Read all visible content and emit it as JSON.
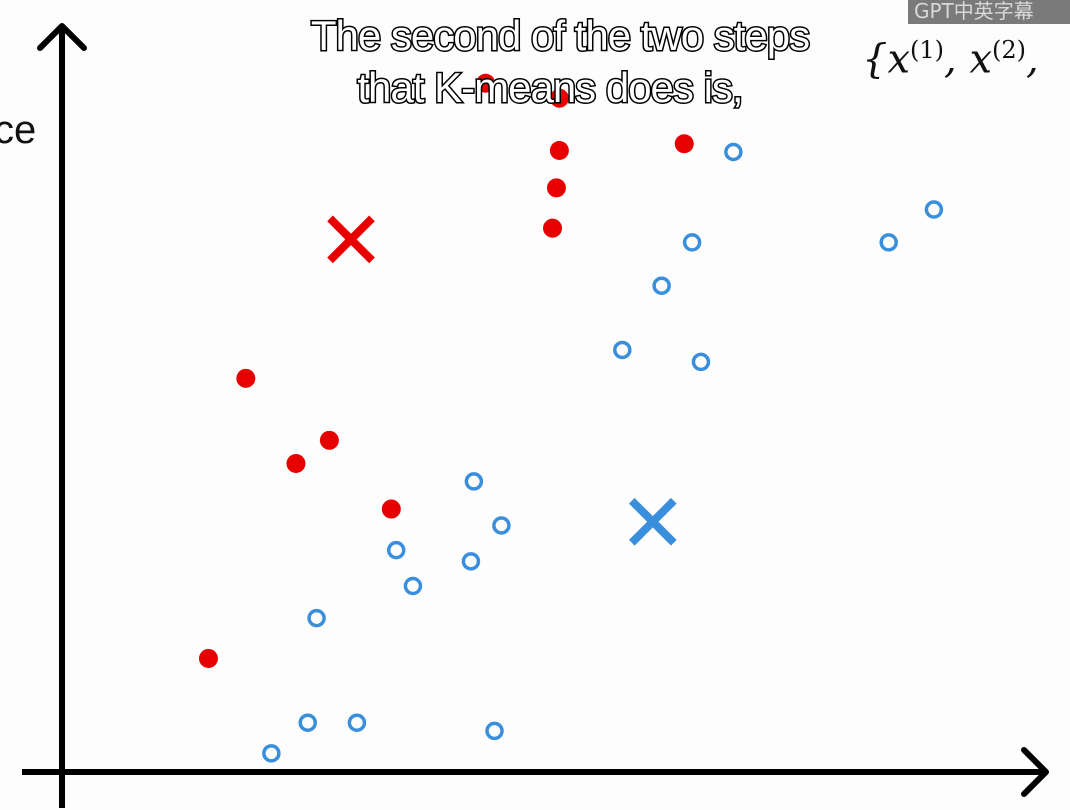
{
  "caption": {
    "line1": "The second of the two steps",
    "line2": "that K-means does is,"
  },
  "math_notation": "{x(1), x(2),",
  "watermark": "GPT中英字幕",
  "edge_label": "ce",
  "colors": {
    "cluster_red": "#e60000",
    "cluster_blue": "#3a8fdc",
    "axis": "#000000"
  },
  "chart_data": {
    "type": "scatter",
    "title": "",
    "xlabel": "",
    "ylabel": "",
    "xlim": [
      0,
      10
    ],
    "ylim": [
      0,
      10
    ],
    "grid": false,
    "series": [
      {
        "color": "#e60000",
        "marker": "filled-circle",
        "x": [
          4.31,
          5.06,
          5.06,
          5.03,
          4.99,
          6.33,
          1.87,
          2.72,
          2.38,
          3.35,
          1.49
        ],
        "y": [
          9.22,
          9.02,
          8.32,
          7.82,
          7.28,
          8.41,
          5.27,
          4.44,
          4.13,
          3.52,
          1.52
        ]
      },
      {
        "color": "#3a8fdc",
        "marker": "open-circle",
        "x": [
          6.83,
          8.87,
          8.41,
          6.41,
          6.1,
          5.7,
          6.5,
          4.19,
          4.47,
          3.4,
          4.16,
          3.57,
          2.59,
          2.5,
          3.0,
          4.4,
          2.13
        ],
        "y": [
          8.3,
          7.53,
          7.09,
          7.09,
          6.51,
          5.65,
          5.49,
          3.89,
          3.3,
          2.97,
          2.82,
          2.49,
          2.06,
          0.66,
          0.66,
          0.55,
          0.25
        ]
      }
    ],
    "centroids": [
      {
        "color": "#e60000",
        "marker": "x",
        "x": 2.94,
        "y": 7.13
      },
      {
        "color": "#3a8fdc",
        "marker": "x",
        "x": 6.01,
        "y": 3.35
      }
    ]
  }
}
